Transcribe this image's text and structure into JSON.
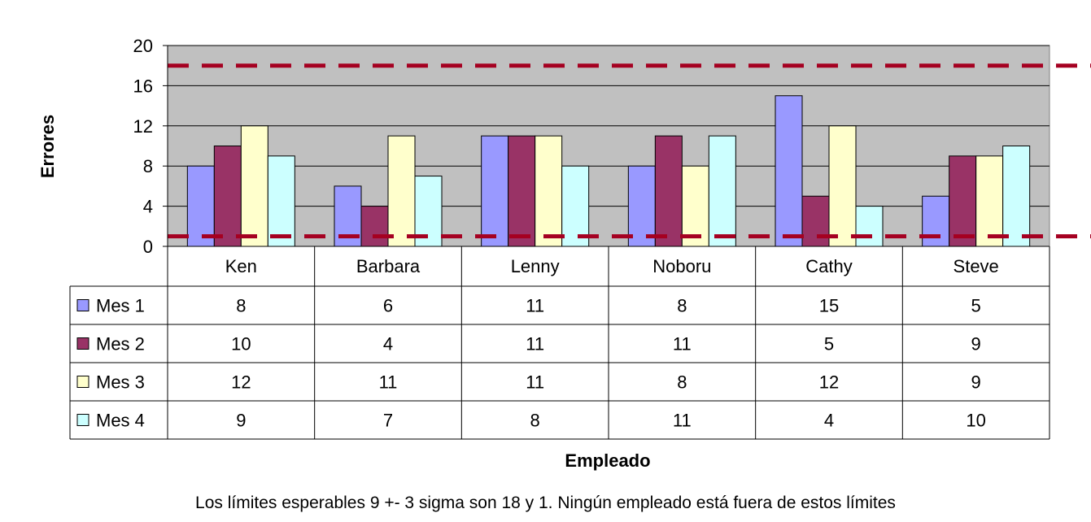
{
  "chart_data": {
    "type": "bar",
    "categories": [
      "Ken",
      "Barbara",
      "Lenny",
      "Noboru",
      "Cathy",
      "Steve"
    ],
    "series": [
      {
        "name": "Mes 1",
        "values": [
          8,
          6,
          11,
          8,
          15,
          5
        ],
        "color": "#9999FF"
      },
      {
        "name": "Mes 2",
        "values": [
          10,
          4,
          11,
          11,
          5,
          9
        ],
        "color": "#993366"
      },
      {
        "name": "Mes 3",
        "values": [
          12,
          11,
          11,
          8,
          12,
          9
        ],
        "color": "#FFFFCC"
      },
      {
        "name": "Mes 4",
        "values": [
          9,
          7,
          8,
          11,
          4,
          10
        ],
        "color": "#CCFFFF"
      }
    ],
    "xlabel": "Empleado",
    "ylabel": "Errores",
    "ylim": [
      0,
      20
    ],
    "yticks": [
      "0",
      "4",
      "8",
      "12",
      "16",
      "20"
    ],
    "reference_lines": [
      {
        "value": 18,
        "style": "dashed",
        "color": "#A50021"
      },
      {
        "value": 1,
        "style": "dashed",
        "color": "#A50021"
      }
    ],
    "plot_background": "#C0C0C0",
    "grid": true,
    "data_table": true
  },
  "footnote": "Los límites esperables 9 +- 3 sigma son 18 y 1.  Ningún empleado está fuera de estos límites"
}
